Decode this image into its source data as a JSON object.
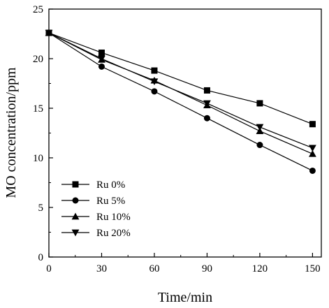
{
  "chart_data": {
    "type": "line",
    "title": "",
    "xlabel": "Time/min",
    "ylabel": "MO concentration/ppm",
    "xlim": [
      0,
      155
    ],
    "ylim": [
      0,
      25
    ],
    "xticks": [
      0,
      30,
      60,
      90,
      120,
      150
    ],
    "yticks": [
      0,
      5,
      10,
      15,
      20,
      25
    ],
    "x": [
      0,
      30,
      60,
      90,
      120,
      150
    ],
    "grid": false,
    "legend_position": "bottom-left",
    "series": [
      {
        "name": "Ru 0%",
        "marker": "square",
        "values": [
          22.6,
          20.6,
          18.8,
          16.8,
          15.5,
          13.4
        ]
      },
      {
        "name": "Ru 5%",
        "marker": "circle",
        "values": [
          22.6,
          19.2,
          16.7,
          14.0,
          11.3,
          8.7
        ]
      },
      {
        "name": "Ru 10%",
        "marker": "triangle-up",
        "values": [
          22.6,
          19.9,
          17.8,
          15.3,
          12.7,
          10.4
        ]
      },
      {
        "name": "Ru 20%",
        "marker": "triangle-down",
        "values": [
          22.6,
          20.0,
          17.7,
          15.5,
          13.1,
          11.0
        ]
      }
    ],
    "line_color": "#000000"
  }
}
